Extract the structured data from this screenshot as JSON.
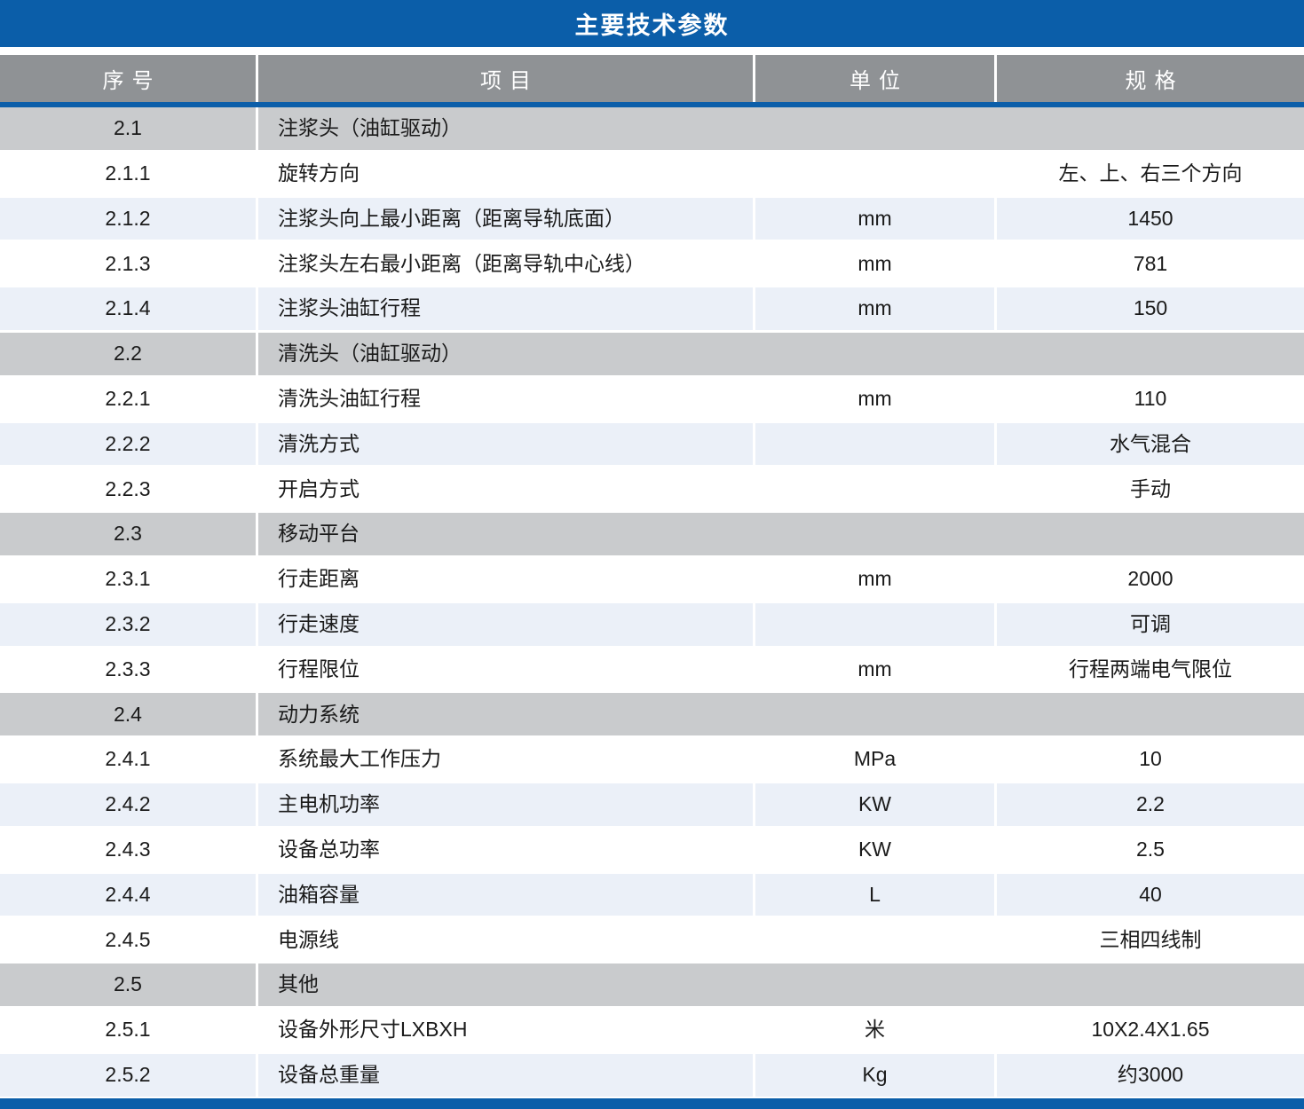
{
  "title": "主要技术参数",
  "columns": [
    {
      "key": "no",
      "label": "序号"
    },
    {
      "key": "item",
      "label": "项目"
    },
    {
      "key": "unit",
      "label": "单位"
    },
    {
      "key": "spec",
      "label": "规格"
    }
  ],
  "rows": [
    {
      "type": "section",
      "no": "2.1",
      "item": "注浆头（油缸驱动）"
    },
    {
      "type": "data",
      "no": "2.1.1",
      "item": "旋转方向",
      "unit": "",
      "spec": "左、上、右三个方向"
    },
    {
      "type": "data",
      "no": "2.1.2",
      "item": "注浆头向上最小距离（距离导轨底面）",
      "unit": "mm",
      "spec": "1450"
    },
    {
      "type": "data",
      "no": "2.1.3",
      "item": "注浆头左右最小距离（距离导轨中心线）",
      "unit": "mm",
      "spec": "781"
    },
    {
      "type": "data",
      "no": "2.1.4",
      "item": "注浆头油缸行程",
      "unit": "mm",
      "spec": "150"
    },
    {
      "type": "section",
      "no": "2.2",
      "item": "清洗头（油缸驱动）"
    },
    {
      "type": "data",
      "no": "2.2.1",
      "item": "清洗头油缸行程",
      "unit": "mm",
      "spec": "110"
    },
    {
      "type": "data",
      "no": "2.2.2",
      "item": "清洗方式",
      "unit": "",
      "spec": "水气混合"
    },
    {
      "type": "data",
      "no": "2.2.3",
      "item": "开启方式",
      "unit": "",
      "spec": "手动"
    },
    {
      "type": "section",
      "no": "2.3",
      "item": "移动平台"
    },
    {
      "type": "data",
      "no": "2.3.1",
      "item": "行走距离",
      "unit": "mm",
      "spec": "2000"
    },
    {
      "type": "data",
      "no": "2.3.2",
      "item": "行走速度",
      "unit": "",
      "spec": "可调"
    },
    {
      "type": "data",
      "no": "2.3.3",
      "item": "行程限位",
      "unit": "mm",
      "spec": "行程两端电气限位"
    },
    {
      "type": "section",
      "no": "2.4",
      "item": "动力系统"
    },
    {
      "type": "data",
      "no": "2.4.1",
      "item": "系统最大工作压力",
      "unit": "MPa",
      "spec": "10"
    },
    {
      "type": "data",
      "no": "2.4.2",
      "item": "主电机功率",
      "unit": "KW",
      "spec": "2.2"
    },
    {
      "type": "data",
      "no": "2.4.3",
      "item": "设备总功率",
      "unit": "KW",
      "spec": "2.5"
    },
    {
      "type": "data",
      "no": "2.4.4",
      "item": "油箱容量",
      "unit": "L",
      "spec": "40"
    },
    {
      "type": "data",
      "no": "2.4.5",
      "item": "电源线",
      "unit": "",
      "spec": "三相四线制"
    },
    {
      "type": "section",
      "no": "2.5",
      "item": "其他"
    },
    {
      "type": "data",
      "no": "2.5.1",
      "item": "设备外形尺寸LXBXH",
      "unit": "米",
      "spec": "10X2.4X1.65"
    },
    {
      "type": "data",
      "no": "2.5.2",
      "item": "设备总重量",
      "unit": "Kg",
      "spec": "约3000"
    }
  ],
  "colors": {
    "accent_blue": "#0B5EA9",
    "header_gray": "#8F9295",
    "section_gray": "#C9CBCD",
    "row_alt_blue": "#EBF0F8",
    "text": "#1A1A1A"
  }
}
